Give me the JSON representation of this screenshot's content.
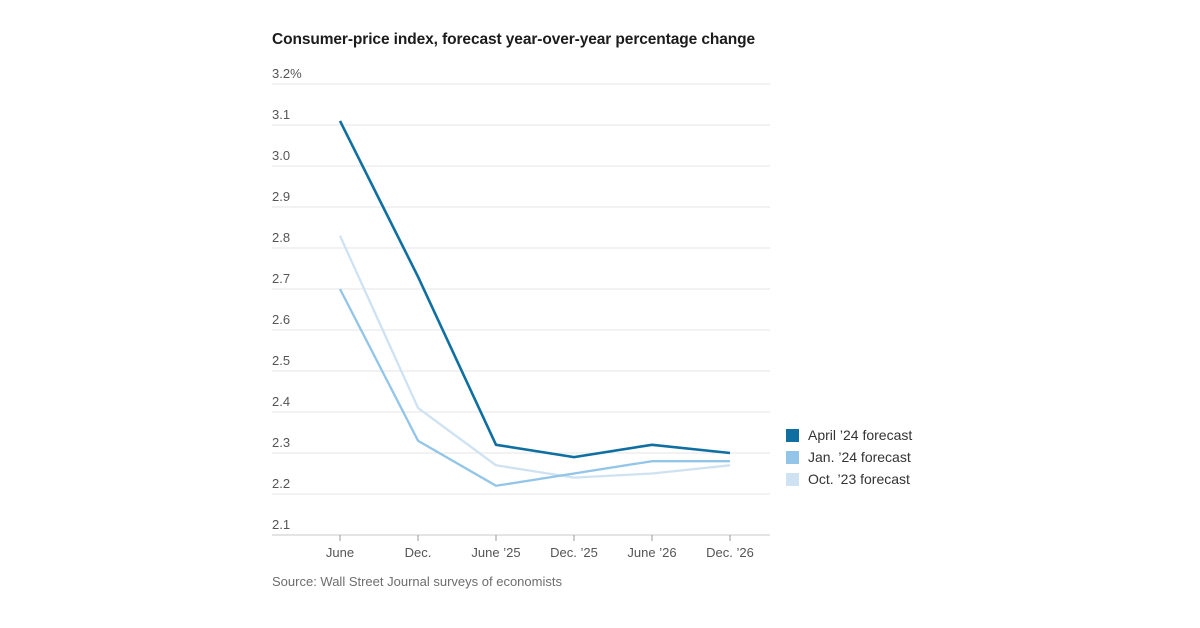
{
  "page": {
    "background": "#ffffff"
  },
  "header": {
    "title": "Consumer-price index, forecast year-over-year percentage change"
  },
  "footer": {
    "source": "Source: Wall Street Journal surveys of economists"
  },
  "colors": {
    "grid": "#e4e4e4",
    "axis": "#c9c9c9",
    "tick": "#999999",
    "tick_label": "#555555",
    "title": "#1c1c1c",
    "source": "#6e6e6e",
    "legend_text": "#333333"
  },
  "chart_data": {
    "type": "line",
    "title": "Consumer-price index, forecast year-over-year percentage change",
    "xlabel": "",
    "ylabel": "forecast year-over-year percentage change",
    "categories": [
      "June",
      "Dec.",
      "June ’25",
      "Dec. ’25",
      "June ’26",
      "Dec. ’26"
    ],
    "series": [
      {
        "name": "April ’24 forecast",
        "color": "#0f6fa0",
        "values": [
          3.11,
          2.73,
          2.32,
          2.29,
          2.32,
          2.3
        ]
      },
      {
        "name": "Jan. ’24 forecast",
        "color": "#92c5e8",
        "values": [
          2.7,
          2.33,
          2.22,
          2.25,
          2.28,
          2.28
        ]
      },
      {
        "name": "Oct. ’23 forecast",
        "color": "#cfe2f2",
        "values": [
          2.83,
          2.41,
          2.27,
          2.24,
          2.25,
          2.27
        ]
      }
    ],
    "ylim": [
      2.1,
      3.2
    ],
    "ytick_step": 0.1,
    "ytick_labels": [
      "3.2%",
      "3.1",
      "3.0",
      "2.9",
      "2.8",
      "2.7",
      "2.6",
      "2.5",
      "2.4",
      "2.3",
      "2.2",
      "2.1"
    ],
    "grid": true,
    "legend_position": "right-middle"
  }
}
